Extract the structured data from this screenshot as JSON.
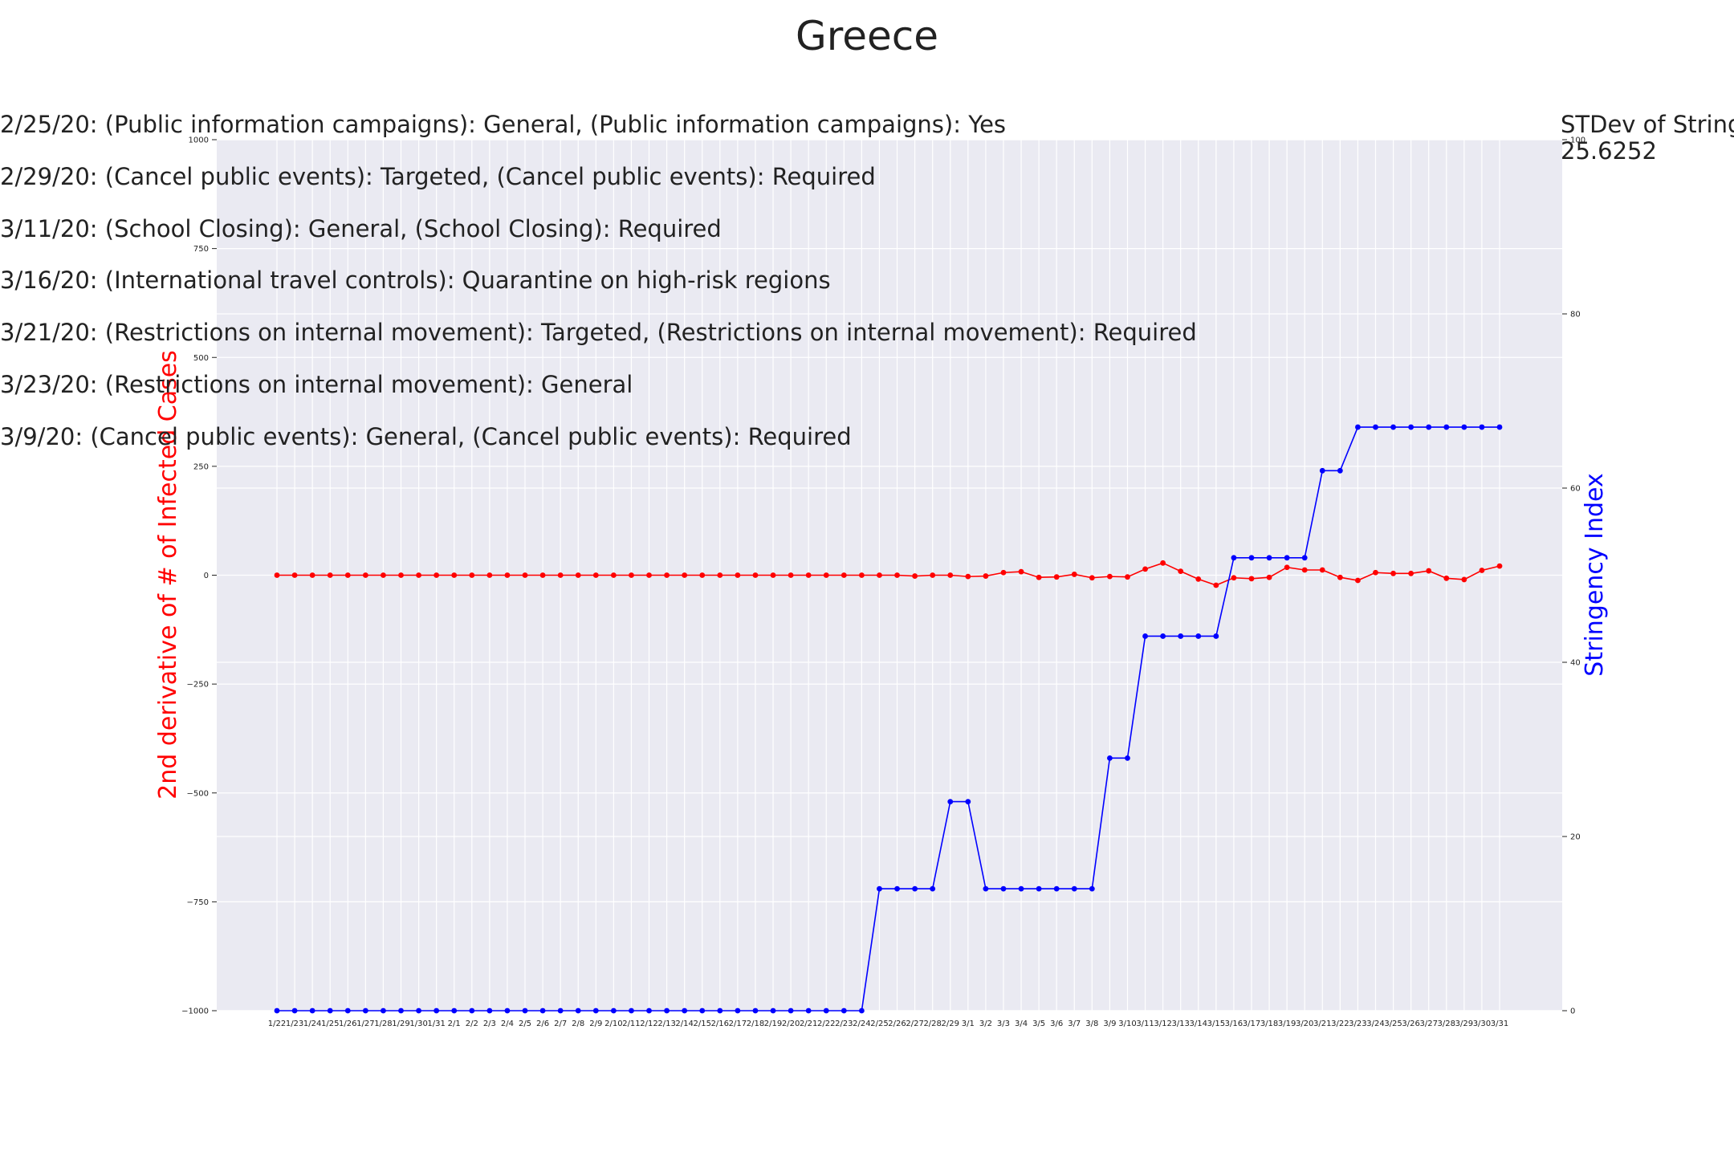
{
  "chart_data": {
    "type": "line",
    "title": "Greece",
    "y_left_label": "2nd derivative of # of Infected Cases",
    "y_right_label": "Stringency Index",
    "y_left_lim": [
      -1000,
      1000
    ],
    "y_left_ticks": [
      -1000,
      -750,
      -500,
      -250,
      0,
      250,
      500,
      750,
      1000
    ],
    "y_right_lim": [
      0,
      100
    ],
    "y_right_ticks": [
      0,
      20,
      40,
      60,
      80,
      100
    ],
    "grid": true,
    "background_color": "#eaeaf2",
    "categories": [
      "1/22",
      "1/23",
      "1/24",
      "1/25",
      "1/26",
      "1/27",
      "1/28",
      "1/29",
      "1/30",
      "1/31",
      "2/1",
      "2/2",
      "2/3",
      "2/4",
      "2/5",
      "2/6",
      "2/7",
      "2/8",
      "2/9",
      "2/10",
      "2/11",
      "2/12",
      "2/13",
      "2/14",
      "2/15",
      "2/16",
      "2/17",
      "2/18",
      "2/19",
      "2/20",
      "2/21",
      "2/22",
      "2/23",
      "2/24",
      "2/25",
      "2/26",
      "2/27",
      "2/28",
      "2/29",
      "3/1",
      "3/2",
      "3/3",
      "3/4",
      "3/5",
      "3/6",
      "3/7",
      "3/8",
      "3/9",
      "3/10",
      "3/11",
      "3/12",
      "3/13",
      "3/14",
      "3/15",
      "3/16",
      "3/17",
      "3/18",
      "3/19",
      "3/20",
      "3/21",
      "3/22",
      "3/23",
      "3/24",
      "3/25",
      "3/26",
      "3/27",
      "3/28",
      "3/29",
      "3/30",
      "3/31"
    ],
    "series": [
      {
        "name": "2nd derivative of # of Infected Cases",
        "axis": "left",
        "color": "#ff0000",
        "values": [
          0,
          0,
          0,
          0,
          0,
          0,
          0,
          0,
          0,
          0,
          0,
          0,
          0,
          0,
          0,
          0,
          0,
          0,
          0,
          0,
          0,
          0,
          0,
          0,
          0,
          0,
          0,
          0,
          0,
          0,
          0,
          0,
          0,
          0,
          0,
          0,
          -2,
          0,
          0,
          -3,
          -2,
          6,
          8,
          -5,
          -4,
          2,
          -6,
          -3,
          -4,
          14,
          28,
          9,
          -9,
          -23,
          -6,
          -8,
          -5,
          18,
          12,
          12,
          -5,
          -12,
          6,
          4,
          4,
          10,
          -7,
          -10,
          11,
          21
        ]
      },
      {
        "name": "Stringency Index",
        "axis": "right",
        "color": "#0000ff",
        "values": [
          0,
          0,
          0,
          0,
          0,
          0,
          0,
          0,
          0,
          0,
          0,
          0,
          0,
          0,
          0,
          0,
          0,
          0,
          0,
          0,
          0,
          0,
          0,
          0,
          0,
          0,
          0,
          0,
          0,
          0,
          0,
          0,
          0,
          0,
          14,
          14,
          14,
          14,
          24,
          24,
          14,
          14,
          14,
          14,
          14,
          14,
          14,
          29,
          29,
          43,
          43,
          43,
          43,
          43,
          52,
          52,
          52,
          52,
          52,
          62,
          62,
          67,
          67,
          67,
          67,
          67,
          67,
          67,
          67,
          67
        ]
      }
    ],
    "annotations": [
      "2/25/20: (Public information campaigns): General, (Public information campaigns): Yes",
      "2/29/20: (Cancel public events): Targeted, (Cancel public events): Required",
      "3/11/20: (School Closing): General, (School Closing): Required",
      "3/16/20: (International travel controls): Quarantine on high-risk regions",
      "3/21/20: (Restrictions on internal movement): Targeted, (Restrictions on internal movement): Required",
      "3/23/20: (Restrictions on internal movement): General",
      "3/9/20: (Cancel public events): General, (Cancel public events): Required"
    ],
    "stdev_label": "STDev of Stringency",
    "stdev_value": "25.6252"
  }
}
